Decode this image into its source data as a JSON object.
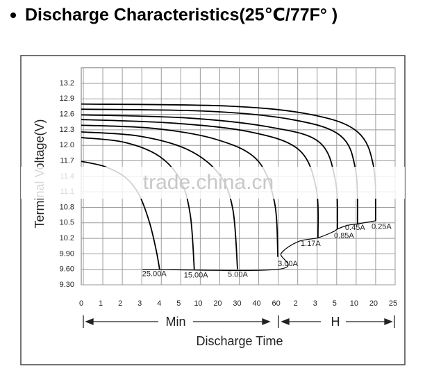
{
  "chart_data": {
    "type": "line",
    "title": "Discharge Characteristics(25℃/77F°  )",
    "y_label": "Terminal Voltage(V)",
    "x_label": "Discharge Time",
    "x_groups": [
      "Min",
      "H"
    ],
    "watermark": "trade.china.cn",
    "color": "#000000",
    "grid": true,
    "xlim": [
      0,
      16
    ],
    "xticks": [
      0,
      {
        "value": 1,
        "label": "1"
      },
      {
        "value": 2,
        "label": "2"
      },
      {
        "value": 3,
        "label": "3"
      },
      {
        "value": 4,
        "label": "4"
      },
      {
        "value": 5,
        "label": "5"
      },
      {
        "value": 6,
        "label": "10"
      },
      {
        "value": 7,
        "label": "20"
      },
      {
        "value": 8,
        "label": "30"
      },
      {
        "value": 9,
        "label": "40"
      },
      {
        "value": 10,
        "label": "60"
      },
      {
        "value": 11,
        "label": "2"
      },
      {
        "value": 12,
        "label": "3"
      },
      {
        "value": 13,
        "label": "5"
      },
      {
        "value": 14,
        "label": "10"
      },
      {
        "value": 15,
        "label": "20"
      },
      {
        "value": 16,
        "label": "25"
      }
    ],
    "ylim": [
      9.3,
      13.5
    ],
    "yticks": [
      13.2,
      12.9,
      12.6,
      12.3,
      {
        "value": 12,
        "label": "12.0"
      },
      11.7,
      11.4,
      11.1,
      10.8,
      10.5,
      10.2,
      {
        "value": 9.9,
        "label": "9.90"
      },
      {
        "value": 9.6,
        "label": "9.60"
      },
      {
        "value": 9.3,
        "label": "9.30"
      }
    ],
    "series": [
      {
        "name": "25.00A",
        "x": [
          0,
          1.2,
          2.26,
          2.96,
          3.5,
          3.85,
          4.02
        ],
        "values": [
          11.69,
          11.59,
          11.38,
          11.05,
          10.51,
          9.96,
          9.6
        ]
      },
      {
        "name": "15.00A",
        "x": [
          0,
          2.2,
          4.0,
          5.1,
          5.6,
          5.8
        ],
        "values": [
          12.15,
          12.06,
          11.79,
          11.32,
          10.64,
          9.6
        ]
      },
      {
        "name": "5.00A",
        "x": [
          0,
          2.96,
          5.45,
          7.06,
          7.77,
          8.02
        ],
        "values": [
          12.26,
          12.18,
          11.92,
          11.45,
          10.78,
          9.6
        ]
      },
      {
        "name": "3.00A",
        "x": [
          0,
          3.67,
          6.88,
          9.02,
          9.91,
          10.09
        ],
        "values": [
          12.39,
          12.33,
          12.12,
          11.72,
          10.91,
          9.84
        ]
      },
      {
        "name": "1.17A",
        "x": [
          0,
          4.74,
          8.66,
          11.15,
          12.05,
          12.15
        ],
        "values": [
          12.5,
          12.43,
          12.26,
          11.92,
          11.18,
          10.21
        ]
      },
      {
        "name": "0.85A",
        "x": [
          0,
          5.45,
          9.73,
          12.22,
          13.04,
          13.15
        ],
        "values": [
          12.59,
          12.53,
          12.35,
          12.06,
          11.32,
          10.38
        ]
      },
      {
        "name": "0.45A",
        "x": [
          0,
          6.52,
          10.8,
          13.29,
          14.08,
          14.18
        ],
        "values": [
          12.7,
          12.66,
          12.5,
          12.19,
          11.52,
          10.48
        ]
      },
      {
        "name": "0.25A",
        "x": [
          0,
          7.59,
          11.87,
          14.18,
          15.0,
          15.11
        ],
        "values": [
          12.8,
          12.76,
          12.59,
          12.26,
          11.59,
          10.54
        ]
      }
    ],
    "cutoff": {
      "x": [
        3.14,
        10.09,
        10.26,
        11.15,
        12.15,
        12.94,
        13.15,
        13.65,
        14.18,
        15.11
      ],
      "values": [
        9.6,
        9.6,
        9.91,
        10.14,
        10.21,
        10.33,
        10.38,
        10.45,
        10.48,
        10.54
      ]
    }
  }
}
